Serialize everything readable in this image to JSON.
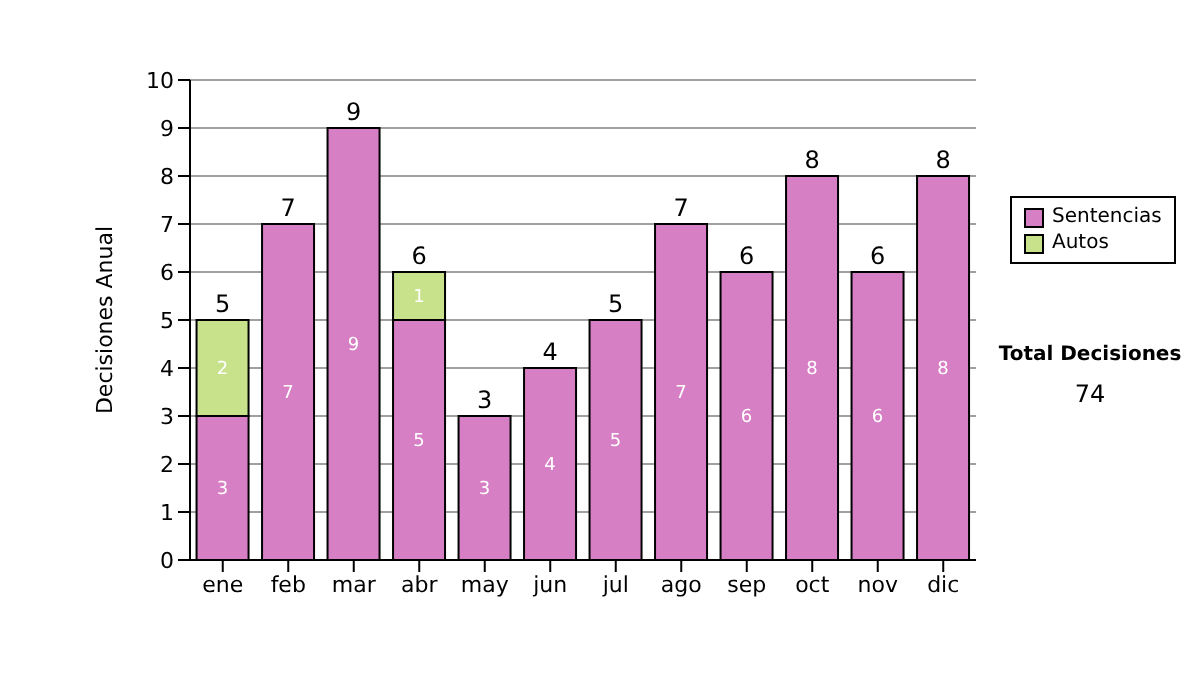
{
  "chart_data": {
    "type": "bar",
    "stacked": true,
    "ylabel": "Decisiones Anual",
    "categories": [
      "ene",
      "feb",
      "mar",
      "abr",
      "may",
      "jun",
      "jul",
      "ago",
      "sep",
      "oct",
      "nov",
      "dic"
    ],
    "series": [
      {
        "name": "Sentencias",
        "color": "#d77fc4",
        "values": [
          3,
          7,
          9,
          5,
          3,
          4,
          5,
          7,
          6,
          8,
          6,
          8
        ]
      },
      {
        "name": "Autos",
        "color": "#c8e28c",
        "values": [
          2,
          null,
          null,
          1,
          null,
          null,
          null,
          null,
          null,
          null,
          null,
          null
        ]
      }
    ],
    "totals": [
      "5",
      "7",
      "9",
      "6",
      "3",
      "4",
      "5",
      "7",
      "6",
      "8",
      "6",
      "8"
    ],
    "data_labels": true,
    "ylim": [
      0,
      10
    ],
    "yticks": [
      0,
      1,
      2,
      3,
      4,
      5,
      6,
      7,
      8,
      9,
      10
    ],
    "grid": "y",
    "legend": "right",
    "annotations": [
      "Total Decisiones",
      "74"
    ]
  }
}
